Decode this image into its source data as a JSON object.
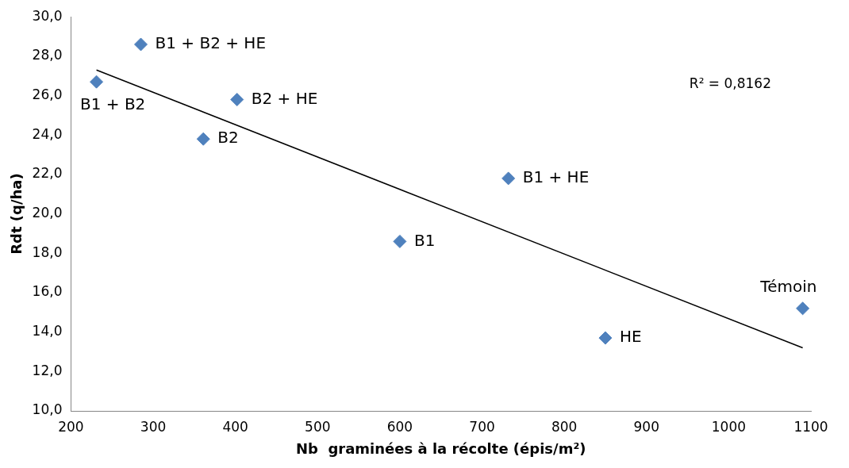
{
  "chart_data": {
    "type": "scatter",
    "xlabel": "Nb  graminées à la récolte (épis/m²)",
    "ylabel": "Rdt (q/ha)",
    "x": [
      285,
      231,
      402,
      361,
      732,
      600,
      850,
      1090
    ],
    "series": [
      {
        "color": "#4f81bd",
        "values": [
          28.6,
          26.7,
          25.8,
          23.8,
          21.8,
          18.6,
          13.7,
          15.2
        ],
        "marker": "diamond"
      },
      {
        "type": "line",
        "color": "#000000",
        "x": [
          231,
          1090
        ],
        "values": [
          27.3,
          13.2
        ],
        "marker": "none"
      }
    ],
    "annotations": [
      {
        "text": "B1 + B2 + HE",
        "x": 285,
        "y": 28.6
      },
      {
        "text": "B1 + B2",
        "x": 231,
        "y": 26.7
      },
      {
        "text": "B2 + HE",
        "x": 402,
        "y": 25.8
      },
      {
        "text": "B2",
        "x": 361,
        "y": 23.8
      },
      {
        "text": "B1 + HE",
        "x": 732,
        "y": 21.8
      },
      {
        "text": "B1",
        "x": 600,
        "y": 18.6
      },
      {
        "text": "HE",
        "x": 850,
        "y": 13.7
      },
      {
        "text": "Témoin",
        "x": 1090,
        "y": 15.2
      },
      "R² = 0,8162"
    ],
    "xlim": [
      200,
      1100
    ],
    "xticks": [
      200,
      300,
      400,
      500,
      600,
      700,
      800,
      900,
      1000,
      1100
    ],
    "ylim": [
      10,
      30
    ],
    "yticks": [
      {
        "value": 10,
        "label": "10,0"
      },
      {
        "value": 12,
        "label": "12,0"
      },
      {
        "value": 14,
        "label": "14,0"
      },
      {
        "value": 16,
        "label": "16,0"
      },
      {
        "value": 18,
        "label": "18,0"
      },
      {
        "value": 20,
        "label": "20,0"
      },
      {
        "value": 22,
        "label": "22,0"
      },
      {
        "value": 24,
        "label": "24,0"
      },
      {
        "value": 26,
        "label": "26,0"
      },
      {
        "value": 28,
        "label": "28,0"
      },
      {
        "value": 30,
        "label": "30,0"
      }
    ],
    "grid": false,
    "legend": false
  }
}
